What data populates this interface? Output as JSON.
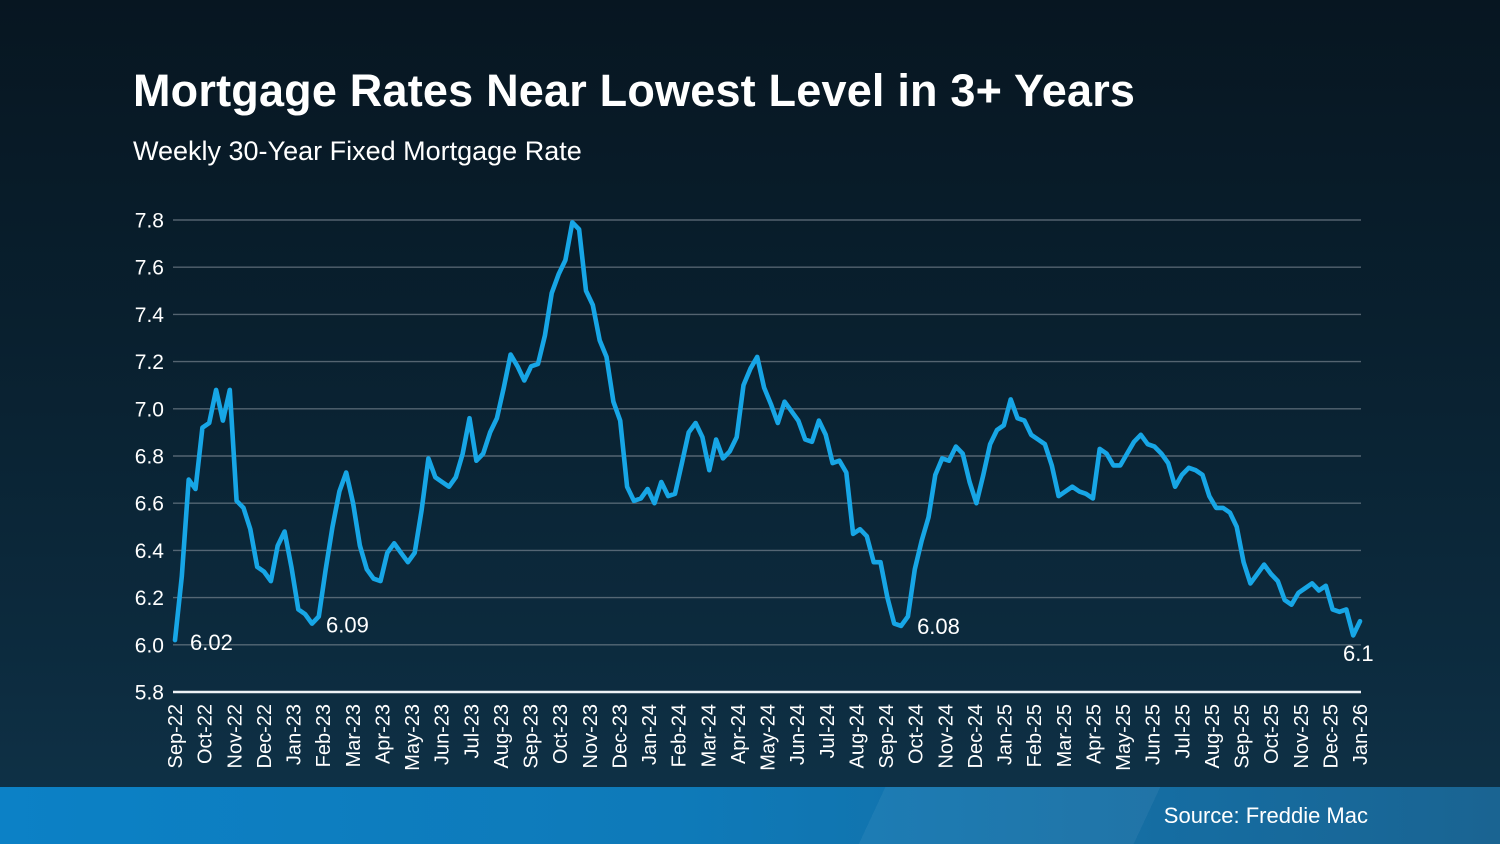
{
  "header": {
    "title": "Mortgage Rates Near Lowest Level in 3+ Years",
    "subtitle": "Weekly 30-Year Fixed Mortgage Rate"
  },
  "footer": {
    "source": "Source: Freddie Mac"
  },
  "colors": {
    "line": "#17a6e6",
    "grid": "#7c8894",
    "axis_line": "#eef2f6",
    "text": "#ffffff",
    "background_top": "#071621",
    "background_bottom": "#0f3349",
    "footer_left": "#0c81c6",
    "footer_right": "#1a6492"
  },
  "chart_data": {
    "type": "line",
    "title": "Mortgage Rates Near Lowest Level in 3+ Years",
    "subtitle": "Weekly 30-Year Fixed Mortgage Rate",
    "xlabel": "",
    "ylabel": "",
    "ylim": [
      5.8,
      7.8
    ],
    "grid": true,
    "legend": false,
    "y_ticks": [
      7.8,
      7.6,
      7.4,
      7.2,
      7.0,
      6.8,
      6.6,
      6.4,
      6.2,
      6.0,
      5.8
    ],
    "x_tick_labels": [
      "Sep-22",
      "Oct-22",
      "Nov-22",
      "Dec-22",
      "Jan-23",
      "Feb-23",
      "Mar-23",
      "Apr-23",
      "May-23",
      "Jun-23",
      "Jul-23",
      "Aug-23",
      "Sep-23",
      "Oct-23",
      "Nov-23",
      "Dec-23",
      "Jan-24",
      "Feb-24",
      "Mar-24",
      "Apr-24",
      "May-24",
      "Jun-24",
      "Jul-24",
      "Aug-24",
      "Sep-24",
      "Oct-24",
      "Nov-24",
      "Dec-24",
      "Jan-25",
      "Feb-25",
      "Mar-25",
      "Apr-25",
      "May-25",
      "Jun-25",
      "Jul-25",
      "Aug-25",
      "Sep-25",
      "Oct-25",
      "Nov-25",
      "Dec-25",
      "Jan-26"
    ],
    "series": [
      {
        "name": "Weekly 30-Year Fixed Mortgage Rate",
        "weekly_values": [
          6.02,
          6.29,
          6.7,
          6.66,
          6.92,
          6.94,
          7.08,
          6.95,
          7.08,
          6.61,
          6.58,
          6.49,
          6.33,
          6.31,
          6.27,
          6.42,
          6.48,
          6.33,
          6.15,
          6.13,
          6.09,
          6.12,
          6.32,
          6.5,
          6.65,
          6.73,
          6.6,
          6.42,
          6.32,
          6.28,
          6.27,
          6.39,
          6.43,
          6.39,
          6.35,
          6.39,
          6.57,
          6.79,
          6.71,
          6.69,
          6.67,
          6.71,
          6.81,
          6.96,
          6.78,
          6.81,
          6.9,
          6.96,
          7.09,
          7.23,
          7.18,
          7.12,
          7.18,
          7.19,
          7.31,
          7.49,
          7.57,
          7.63,
          7.79,
          7.76,
          7.5,
          7.44,
          7.29,
          7.22,
          7.03,
          6.95,
          6.67,
          6.61,
          6.62,
          6.66,
          6.6,
          6.69,
          6.63,
          6.64,
          6.77,
          6.9,
          6.94,
          6.88,
          6.74,
          6.87,
          6.79,
          6.82,
          6.88,
          7.1,
          7.17,
          7.22,
          7.09,
          7.02,
          6.94,
          7.03,
          6.99,
          6.95,
          6.87,
          6.86,
          6.95,
          6.89,
          6.77,
          6.78,
          6.73,
          6.47,
          6.49,
          6.46,
          6.35,
          6.35,
          6.2,
          6.09,
          6.08,
          6.12,
          6.32,
          6.44,
          6.54,
          6.72,
          6.79,
          6.78,
          6.84,
          6.81,
          6.69,
          6.6,
          6.72,
          6.85,
          6.91,
          6.93,
          7.04,
          6.96,
          6.95,
          6.89,
          6.87,
          6.85,
          6.76,
          6.63,
          6.65,
          6.67,
          6.65,
          6.64,
          6.62,
          6.83,
          6.81,
          6.76,
          6.76,
          6.81,
          6.86,
          6.89,
          6.85,
          6.84,
          6.81,
          6.77,
          6.67,
          6.72,
          6.75,
          6.74,
          6.72,
          6.63,
          6.58,
          6.58,
          6.56,
          6.5,
          6.35,
          6.26,
          6.3,
          6.34,
          6.3,
          6.27,
          6.19,
          6.17,
          6.22,
          6.24,
          6.26,
          6.23,
          6.25,
          6.15,
          6.14,
          6.15,
          6.04,
          6.1
        ]
      }
    ],
    "annotations": [
      {
        "index": 0,
        "label": "6.02"
      },
      {
        "index": 20,
        "label": "6.09"
      },
      {
        "index": 106,
        "label": "6.08"
      },
      {
        "index": 173,
        "label": "6.1"
      }
    ]
  }
}
